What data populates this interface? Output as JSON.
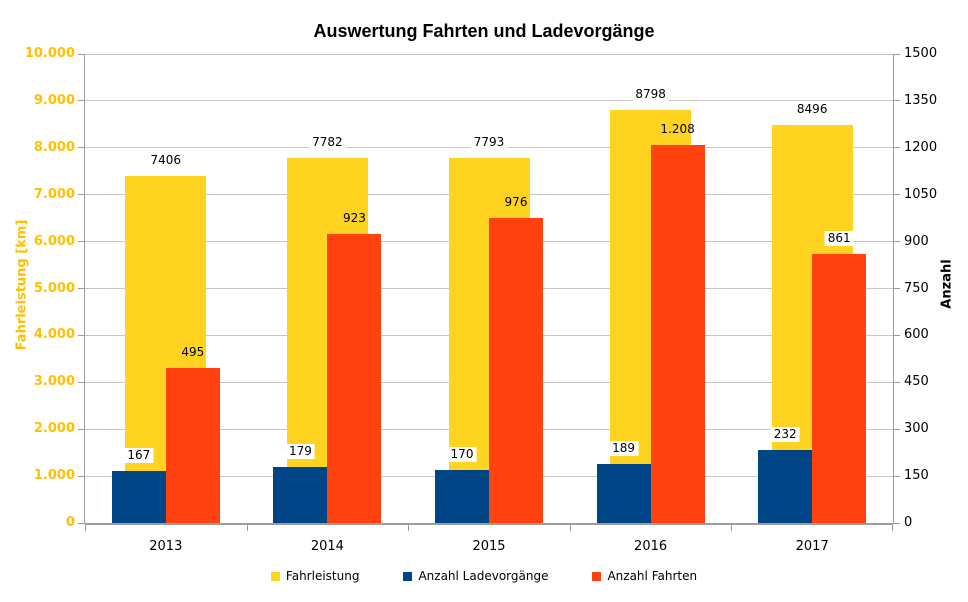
{
  "chart_data": {
    "type": "bar",
    "title": "Auswertung Fahrten und Ladevorgänge",
    "categories": [
      "2013",
      "2014",
      "2015",
      "2016",
      "2017"
    ],
    "series": [
      {
        "name": "Fahrleistung",
        "axis": "left",
        "color": "#FFD320",
        "values": [
          7406,
          7782,
          7793,
          8798,
          8496
        ],
        "value_labels": [
          "7406",
          "7782",
          "7793",
          "8798",
          "8496"
        ],
        "label_backgrounds": [
          "white",
          "white",
          "white",
          "white",
          "white"
        ]
      },
      {
        "name": "Anzahl Ladevorgänge",
        "axis": "right",
        "color": "#004586",
        "values": [
          167,
          179,
          170,
          189,
          232
        ],
        "value_labels": [
          "167",
          "179",
          "170",
          "189",
          "232"
        ],
        "label_backgrounds": [
          "white",
          "white",
          "white",
          "white",
          "white"
        ]
      },
      {
        "name": "Anzahl Fahrten",
        "axis": "right",
        "color": "#FF420E",
        "values": [
          495,
          923,
          976,
          1208,
          861
        ],
        "value_labels": [
          "495",
          "923",
          "976",
          "1.208",
          "861"
        ],
        "label_backgrounds": [
          "none",
          "none",
          "none",
          "none",
          "white"
        ]
      }
    ],
    "left_axis": {
      "title": "Fahrleistung [km]",
      "color": "#FFC000",
      "min": 0,
      "max": 10000,
      "tick_labels": [
        "10.000",
        "9.000",
        "8.000",
        "7.000",
        "6.000",
        "5.000",
        "4.000",
        "3.000",
        "2.000",
        "1.000",
        "0"
      ]
    },
    "right_axis": {
      "title": "Anzahl",
      "color": "#000000",
      "min": 0,
      "max": 1500,
      "tick_labels": [
        "1500",
        "1350",
        "1200",
        "1050",
        "900",
        "750",
        "600",
        "450",
        "300",
        "150",
        "0"
      ]
    },
    "legend_position": "bottom",
    "grid": "horizontal"
  }
}
